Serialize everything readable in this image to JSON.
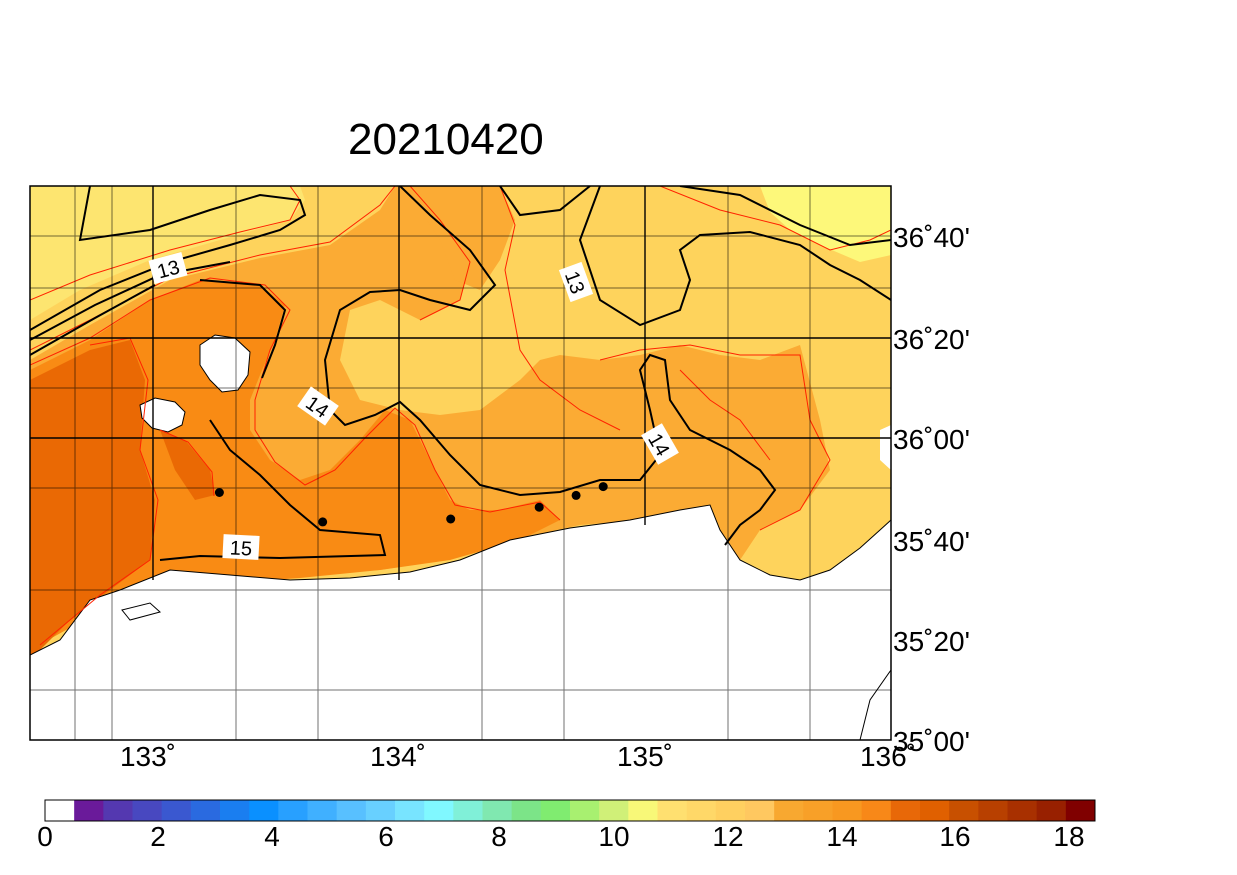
{
  "title": "20210420",
  "lon_ticks": [
    "133˚",
    "134˚",
    "135˚",
    "136˚"
  ],
  "lat_ticks": [
    "36˚40'",
    "36˚20'",
    "36˚00'",
    "35˚40'",
    "35˚20'",
    "35˚00'"
  ],
  "contour_labels": [
    "13",
    "13",
    "14",
    "14",
    "15"
  ],
  "colorbar": {
    "tick_labels": [
      "0",
      "2",
      "4",
      "6",
      "8",
      "10",
      "12",
      "14",
      "16",
      "18"
    ],
    "colors": [
      "#ffffff",
      "#6a1a9a",
      "#5438b0",
      "#4848c0",
      "#3a58d0",
      "#2a6ae0",
      "#1a7ef0",
      "#0a90ff",
      "#28a0ff",
      "#40b0ff",
      "#58c0ff",
      "#68d0ff",
      "#78e4ff",
      "#80f8ff",
      "#80f0d8",
      "#80e8b0",
      "#7ce488",
      "#80ec70",
      "#a8f070",
      "#d0f078",
      "#f8f878",
      "#ffe070",
      "#ffd868",
      "#ffd060",
      "#ffc860",
      "#f8a830",
      "#f8a028",
      "#f89820",
      "#f88818",
      "#e86808",
      "#e06000",
      "#c85000",
      "#b84000",
      "#a83000",
      "#982000",
      "#800000"
    ]
  },
  "stations": [
    {
      "lon": 133.22,
      "lat": 35.84
    },
    {
      "lon": 133.64,
      "lat": 35.74
    },
    {
      "lon": 134.16,
      "lat": 35.75
    },
    {
      "lon": 134.52,
      "lat": 35.79
    },
    {
      "lon": 134.67,
      "lat": 35.83
    },
    {
      "lon": 134.78,
      "lat": 35.86
    }
  ],
  "extent": {
    "lon_min": 132.45,
    "lon_max": 135.95,
    "lat_min": 35.0,
    "lat_max": 36.88
  },
  "palette": {
    "lightest": "#fdf87a",
    "light": "#fed35c",
    "mid": "#fbab34",
    "orange": "#f98b14",
    "dark": "#ea6904",
    "darkest": "#dc5a00",
    "red_contour": "#ff2200"
  }
}
